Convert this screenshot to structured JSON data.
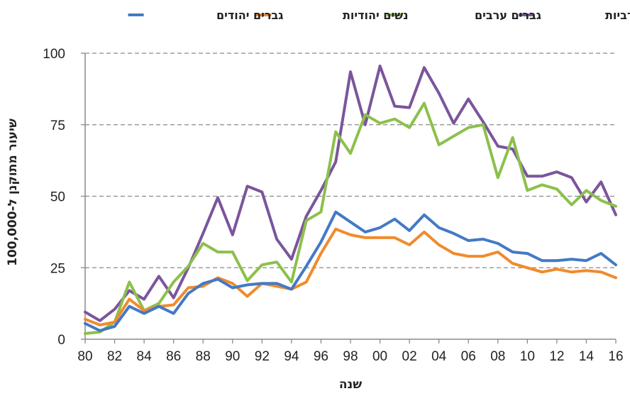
{
  "chart_data": {
    "type": "line",
    "title": "",
    "xlabel": "שנה",
    "ylabel": "שיעור מתוקנן ל-100,000",
    "ylim": [
      0,
      100
    ],
    "yticks": [
      "0",
      "25",
      "50",
      "75",
      "100"
    ],
    "xlim": [
      1980,
      2016
    ],
    "xticks": [
      "80",
      "82",
      "84",
      "86",
      "88",
      "90",
      "92",
      "94",
      "96",
      "98",
      "00",
      "02",
      "04",
      "06",
      "08",
      "10",
      "12",
      "14",
      "16"
    ],
    "grid": "horizontal-dashed",
    "legend_position": "top",
    "x": [
      1980,
      1981,
      1982,
      1983,
      1984,
      1985,
      1986,
      1987,
      1988,
      1989,
      1990,
      1991,
      1992,
      1993,
      1994,
      1995,
      1996,
      1997,
      1998,
      1999,
      2000,
      2001,
      2002,
      2003,
      2004,
      2005,
      2006,
      2007,
      2008,
      2009,
      2010,
      2011,
      2012,
      2013,
      2014,
      2015,
      2016
    ],
    "series": [
      {
        "name": "נשים ערביות",
        "color": "#7b559c",
        "values": [
          9.5,
          6.5,
          10.5,
          17,
          14,
          22,
          14.5,
          25,
          37,
          49.5,
          36.5,
          53.5,
          51.5,
          35,
          28,
          43,
          52,
          62,
          93.5,
          75,
          95.5,
          81.5,
          81,
          95,
          86,
          75.5,
          84,
          76,
          67.5,
          66.5,
          57,
          57,
          58.5,
          56.5,
          48,
          55,
          43.5
        ]
      },
      {
        "name": "גברים ערבים",
        "color": "#8cc04c",
        "values": [
          2,
          2.5,
          6,
          20,
          10,
          12.5,
          20,
          25.5,
          33.5,
          30.5,
          30.5,
          20.5,
          26,
          27,
          20,
          41.5,
          44.5,
          72.5,
          65,
          78.5,
          75.5,
          77,
          74,
          82.5,
          68,
          71,
          74,
          75,
          56.5,
          70.5,
          52,
          54,
          52.5,
          47,
          52,
          48.5,
          46.5
        ]
      },
      {
        "name": "נשים יהודיות",
        "color": "#f08b2d",
        "values": [
          7,
          5,
          6,
          14,
          10,
          11.5,
          12,
          18,
          18.5,
          21.5,
          19.5,
          15,
          19.5,
          18.5,
          17.5,
          20,
          30,
          38.5,
          36.5,
          35.5,
          35.5,
          35.5,
          33,
          37.5,
          33,
          30,
          29,
          29,
          30.5,
          26.5,
          25,
          23.5,
          24.5,
          23.5,
          24,
          23.5,
          21.5
        ]
      },
      {
        "name": "גברים יהודים",
        "color": "#4479c4",
        "values": [
          5.5,
          3,
          4.5,
          11.5,
          9,
          11.5,
          9,
          16,
          19.5,
          21,
          18,
          19,
          19.5,
          19.5,
          17.5,
          25.5,
          34,
          44.5,
          41,
          37.5,
          39,
          42,
          38,
          43.5,
          39,
          37,
          34.5,
          35,
          33.5,
          30.5,
          30,
          27.5,
          27.5,
          28,
          27.5,
          30,
          26
        ]
      }
    ]
  }
}
